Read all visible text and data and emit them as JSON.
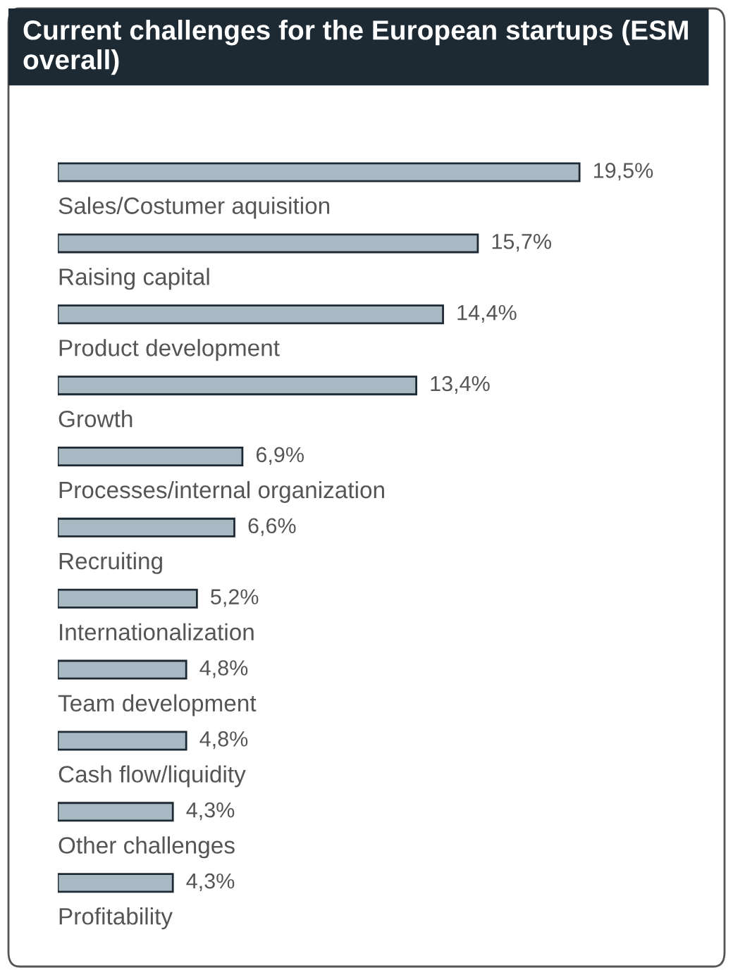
{
  "chart_data": {
    "type": "bar",
    "orientation": "horizontal",
    "title": "Current challenges for the European startups (ESM overall)",
    "categories": [
      "Sales/Costumer aquisition",
      "Raising capital",
      "Product development",
      "Growth",
      "Processes/internal organization",
      "Recruiting",
      "Internationalization",
      "Team development",
      "Cash flow/liquidity",
      "Other challenges",
      "Profitability"
    ],
    "values": [
      19.5,
      15.7,
      14.4,
      13.4,
      6.9,
      6.6,
      5.2,
      4.8,
      4.8,
      4.3,
      4.3
    ],
    "value_labels": [
      "19,5%",
      "15,7%",
      "14,4%",
      "13,4%",
      "6,9%",
      "6,6%",
      "5,2%",
      "4,8%",
      "4,8%",
      "4,3%",
      "4,3%"
    ],
    "color": "#a9b9c4"
  }
}
